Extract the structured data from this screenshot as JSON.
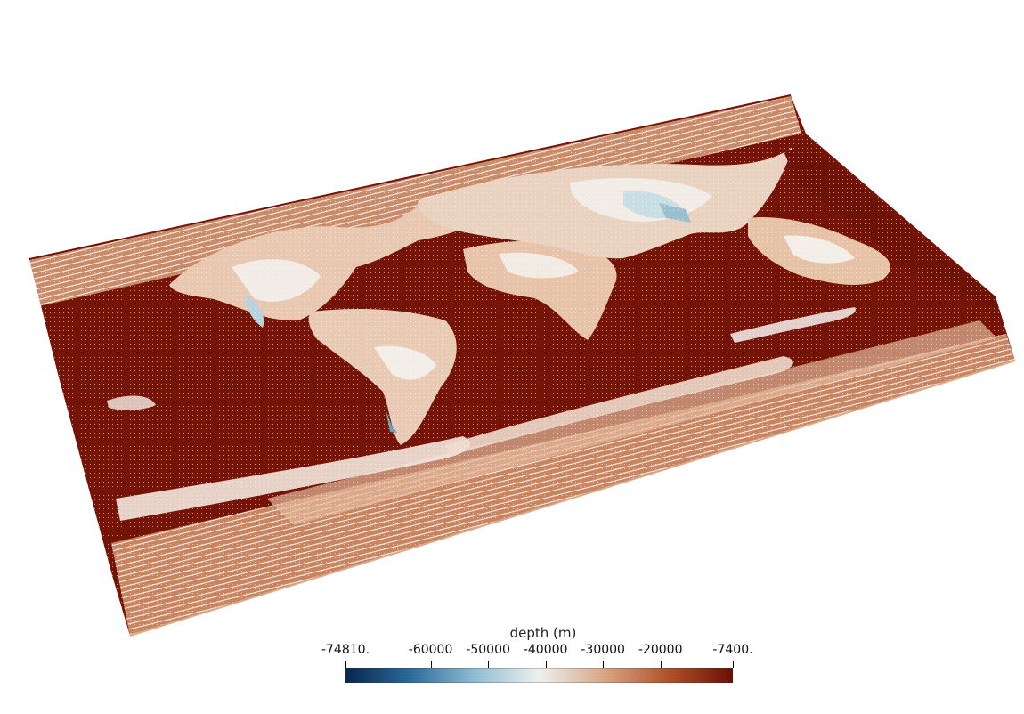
{
  "colorbar": {
    "title": "depth (m)",
    "min_label": "-74810.",
    "max_label": "-7400.",
    "min": -74810,
    "max": -7400,
    "ticks": [
      {
        "value": -74810,
        "label": "-74810."
      },
      {
        "value": -60000,
        "label": "-60000"
      },
      {
        "value": -50000,
        "label": "-50000"
      },
      {
        "value": -40000,
        "label": "-40000"
      },
      {
        "value": -30000,
        "label": "-30000"
      },
      {
        "value": -20000,
        "label": "-20000"
      },
      {
        "value": -7400,
        "label": "-7400."
      }
    ],
    "colors": [
      "#07264f",
      "#2c6a99",
      "#8fbcd3",
      "#eef0ee",
      "#d8a786",
      "#b0522a",
      "#6a0f05"
    ]
  },
  "scene": {
    "surface_colors": {
      "deep": "#751406",
      "mid": "#c07a57",
      "light": "#e3c0a6",
      "pale": "#f2ece7",
      "cool": "#b8d3de"
    }
  }
}
